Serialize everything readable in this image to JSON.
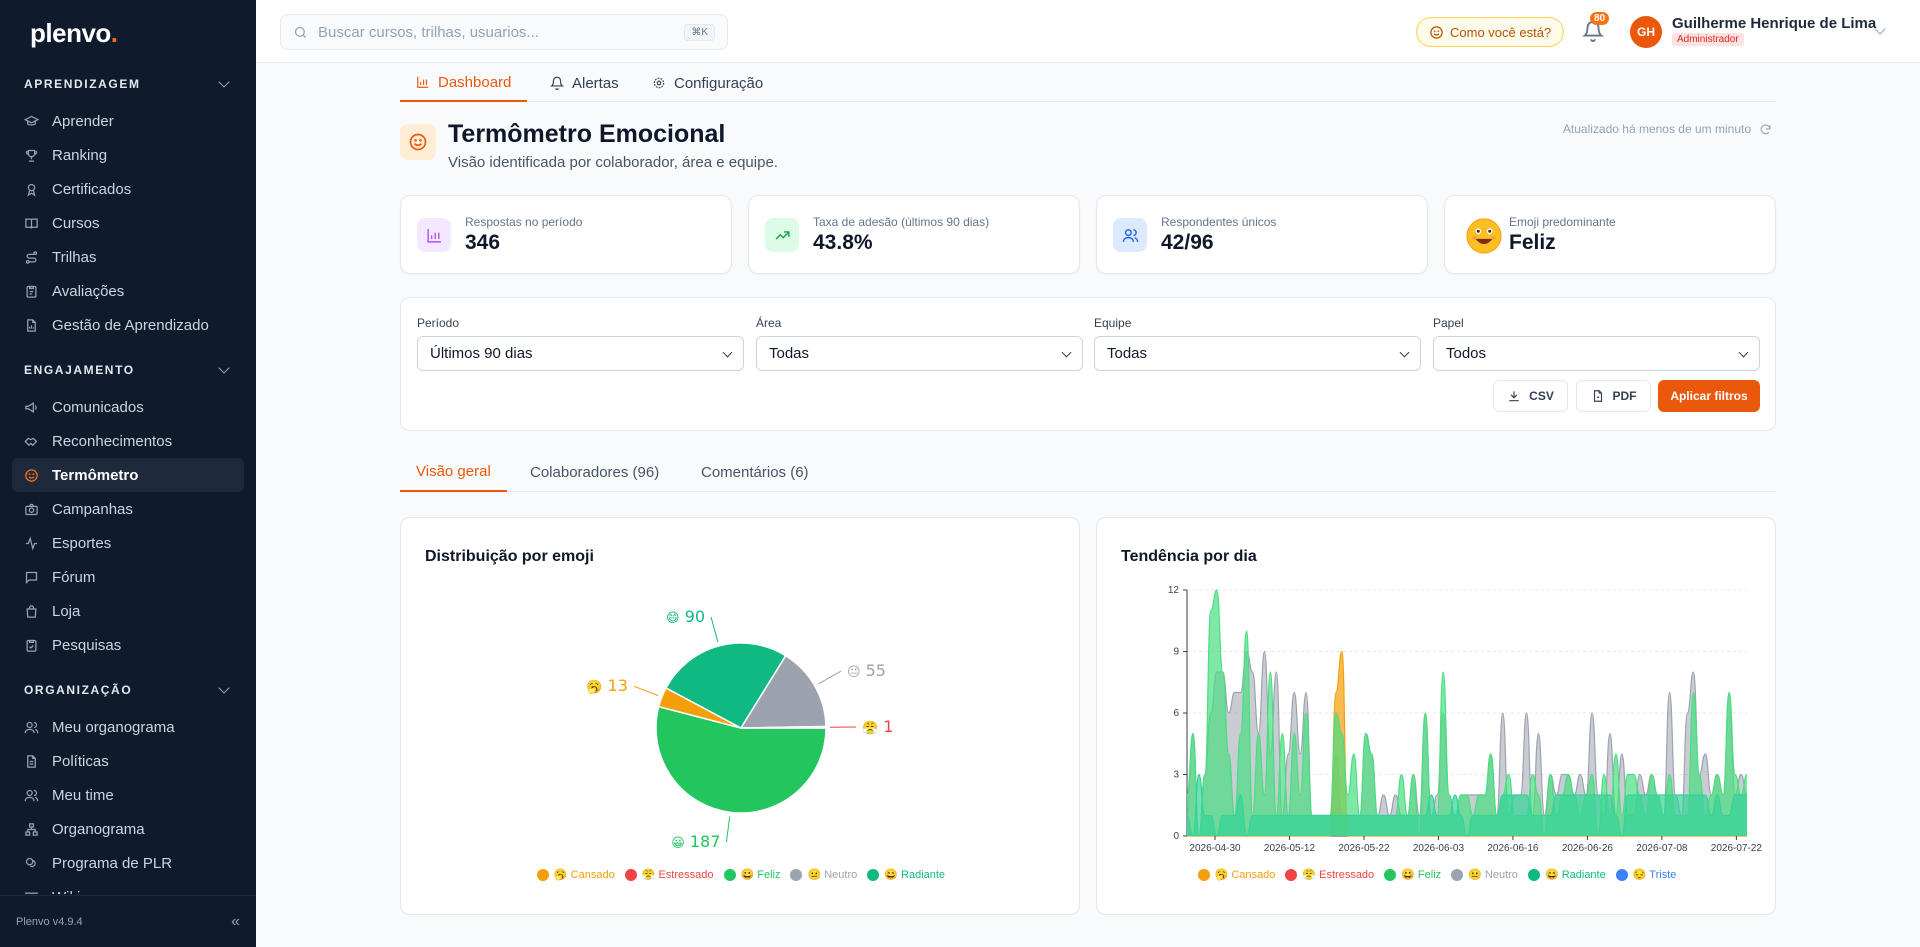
{
  "brand": {
    "name": "plenvo",
    "dot": "."
  },
  "sidebar": {
    "sections": [
      {
        "title": "APRENDIZAGEM",
        "items": [
          {
            "label": "Aprender",
            "icon": "graduation-cap-icon"
          },
          {
            "label": "Ranking",
            "icon": "trophy-icon"
          },
          {
            "label": "Certificados",
            "icon": "award-icon"
          },
          {
            "label": "Cursos",
            "icon": "book-icon"
          },
          {
            "label": "Trilhas",
            "icon": "route-icon"
          },
          {
            "label": "Avaliações",
            "icon": "clipboard-icon"
          },
          {
            "label": "Gestão de Aprendizado",
            "icon": "file-chart-icon"
          }
        ]
      },
      {
        "title": "ENGAJAMENTO",
        "items": [
          {
            "label": "Comunicados",
            "icon": "megaphone-icon"
          },
          {
            "label": "Reconhecimentos",
            "icon": "handshake-icon"
          },
          {
            "label": "Termômetro",
            "icon": "smile-icon",
            "active": true
          },
          {
            "label": "Campanhas",
            "icon": "camera-icon"
          },
          {
            "label": "Esportes",
            "icon": "activity-icon"
          },
          {
            "label": "Fórum",
            "icon": "message-icon"
          },
          {
            "label": "Loja",
            "icon": "shopping-bag-icon"
          },
          {
            "label": "Pesquisas",
            "icon": "clipboard-check-icon"
          }
        ]
      },
      {
        "title": "ORGANIZAÇÃO",
        "items": [
          {
            "label": "Meu organograma",
            "icon": "users-icon"
          },
          {
            "label": "Políticas",
            "icon": "document-icon"
          },
          {
            "label": "Meu time",
            "icon": "users-icon"
          },
          {
            "label": "Organograma",
            "icon": "network-icon"
          },
          {
            "label": "Programa de PLR",
            "icon": "coins-icon"
          },
          {
            "label": "Wiki",
            "icon": "book-open-icon"
          }
        ]
      }
    ],
    "version": "Plenvo v4.9.4"
  },
  "topbar": {
    "search_placeholder": "Buscar cursos, trilhas, usuarios...",
    "search_kbd": "⌘K",
    "mood_button": "Como você está?",
    "notifications": "80",
    "user": {
      "initials": "GH",
      "name": "Guilherme Henrique de Lima",
      "role": "Administrador"
    }
  },
  "page_tabs": [
    {
      "label": "Dashboard",
      "active": true
    },
    {
      "label": "Alertas"
    },
    {
      "label": "Configuração"
    }
  ],
  "header": {
    "title": "Termômetro Emocional",
    "subtitle": "Visão identificada por colaborador, área e equipe.",
    "updated": "Atualizado há menos de um minuto"
  },
  "kpis": [
    {
      "label": "Respostas no período",
      "value": "346",
      "icon": "bar-chart-icon",
      "color": "#a855f7",
      "bg": "#f3e8ff"
    },
    {
      "label": "Taxa de adesão (últimos 90 dias)",
      "value": "43.8%",
      "icon": "trending-up-icon",
      "color": "#16a34a",
      "bg": "#dcfce7"
    },
    {
      "label": "Respondentes únicos",
      "value": "42/96",
      "icon": "users-icon",
      "color": "#2563eb",
      "bg": "#dbeafe"
    },
    {
      "label": "Emoji predominante",
      "value": "Feliz",
      "icon": "happy-emoji-icon"
    }
  ],
  "filters": {
    "fields": [
      {
        "label": "Período",
        "value": "Últimos 90 dias"
      },
      {
        "label": "Área",
        "value": "Todas"
      },
      {
        "label": "Equipe",
        "value": "Todas"
      },
      {
        "label": "Papel",
        "value": "Todos"
      }
    ],
    "csv": "CSV",
    "pdf": "PDF",
    "apply": "Aplicar filtros"
  },
  "sub_tabs": [
    {
      "label": "Visão geral",
      "active": true
    },
    {
      "label": "Colaboradores (96)"
    },
    {
      "label": "Comentários (6)"
    }
  ],
  "chart_data": [
    {
      "type": "pie",
      "title": "Distribuição por emoji",
      "slices": [
        {
          "label": "Feliz",
          "emoji": "😀",
          "value": 187,
          "color": "#22c55e"
        },
        {
          "label": "Cansado",
          "emoji": "🥱",
          "value": 13,
          "color": "#f59e0b"
        },
        {
          "label": "Radiante",
          "emoji": "😄",
          "value": 90,
          "color": "#10b981"
        },
        {
          "label": "Neutro",
          "emoji": "😐",
          "value": 55,
          "color": "#9ca3af"
        },
        {
          "label": "Estressado",
          "emoji": "😤",
          "value": 1,
          "color": "#ef4444"
        }
      ],
      "legend": [
        {
          "label": "🥱 Cansado",
          "color": "#f59e0b"
        },
        {
          "label": "😤 Estressado",
          "color": "#ef4444"
        },
        {
          "label": "😀 Feliz",
          "color": "#22c55e"
        },
        {
          "label": "😐 Neutro",
          "color": "#9ca3af"
        },
        {
          "label": "😄 Radiante",
          "color": "#10b981"
        }
      ]
    },
    {
      "type": "area",
      "title": "Tendência por dia",
      "ylim": [
        0,
        12
      ],
      "yticks": [
        "0",
        "3",
        "6",
        "9",
        "12"
      ],
      "xticks": [
        "2026-04-30",
        "2026-05-12",
        "2026-05-22",
        "2026-06-03",
        "2026-06-16",
        "2026-06-26",
        "2026-07-08",
        "2026-07-22"
      ],
      "series": [
        {
          "name": "Neutro",
          "color": "#9ca3af",
          "values": [
            1,
            5,
            0,
            3,
            6,
            8,
            8,
            6,
            7,
            7,
            9,
            8,
            5,
            9,
            4,
            8,
            1,
            4,
            7,
            4,
            7,
            1,
            1,
            1,
            1,
            4,
            1,
            1,
            1,
            1,
            5,
            4,
            1,
            2,
            1,
            2,
            1,
            1,
            3,
            1,
            6,
            1,
            2,
            6,
            2,
            1,
            2,
            2,
            2,
            2,
            2,
            4,
            1,
            6,
            1,
            2,
            2,
            6,
            1,
            5,
            1,
            3,
            2,
            3,
            3,
            2,
            3,
            2,
            6,
            2,
            1,
            5,
            1,
            4,
            1,
            1,
            3,
            2,
            3,
            2,
            1,
            7,
            2,
            1,
            6,
            8,
            3,
            4,
            2,
            3,
            2,
            7,
            2,
            3,
            2
          ]
        },
        {
          "name": "Cansado",
          "color": "#f59e0b",
          "values": [
            0,
            0,
            0,
            0,
            0,
            0,
            0,
            0,
            0,
            0,
            0,
            0,
            0,
            0,
            0,
            0,
            0,
            0,
            0,
            0,
            0,
            0,
            0,
            0,
            0,
            7,
            9,
            0,
            0,
            0,
            0,
            0,
            0,
            0,
            0,
            0,
            0,
            0,
            0,
            0,
            0,
            0,
            0,
            0,
            0,
            0,
            0,
            0,
            0,
            0,
            0,
            0,
            0,
            0,
            0,
            0,
            0,
            0,
            0,
            0,
            0,
            0,
            0,
            0,
            0,
            0,
            0,
            0,
            0,
            0,
            0,
            0,
            0,
            0,
            0,
            0,
            0,
            0,
            0,
            0,
            0,
            0,
            0,
            0,
            0,
            0,
            0,
            0,
            0,
            0,
            0,
            0,
            0,
            0,
            0
          ]
        },
        {
          "name": "Feliz",
          "color": "#4ade80",
          "values": [
            2,
            5,
            0,
            3,
            11,
            12,
            8,
            4,
            1,
            5,
            10,
            1,
            5,
            2,
            8,
            1,
            5,
            1,
            5,
            2,
            6,
            1,
            1,
            1,
            1,
            6,
            5,
            2,
            4,
            1,
            5,
            4,
            1,
            1,
            1,
            1,
            3,
            1,
            3,
            0,
            6,
            1,
            1,
            8,
            2,
            1,
            2,
            2,
            1,
            2,
            2,
            4,
            1,
            2,
            3,
            1,
            1,
            1,
            3,
            2,
            0,
            3,
            1,
            2,
            3,
            2,
            1,
            2,
            3,
            0,
            3,
            1,
            4,
            1,
            3,
            3,
            2,
            1,
            3,
            2,
            1,
            3,
            1,
            1,
            1,
            7,
            3,
            1,
            2,
            3,
            2,
            7,
            3,
            2,
            3
          ]
        },
        {
          "name": "Radiante",
          "color": "#34d399",
          "values": [
            1,
            0,
            3,
            1,
            1,
            0,
            1,
            1,
            1,
            2,
            0,
            1,
            1,
            1,
            1,
            1,
            1,
            1,
            1,
            1,
            1,
            1,
            1,
            1,
            1,
            1,
            1,
            1,
            1,
            1,
            1,
            1,
            1,
            1,
            1,
            1,
            1,
            1,
            1,
            1,
            1,
            2,
            1,
            1,
            1,
            2,
            1,
            0,
            1,
            1,
            1,
            1,
            1,
            2,
            2,
            2,
            2,
            2,
            1,
            1,
            1,
            1,
            2,
            2,
            2,
            2,
            2,
            2,
            2,
            2,
            2,
            2,
            1,
            0,
            2,
            2,
            2,
            2,
            2,
            2,
            2,
            2,
            2,
            2,
            2,
            2,
            2,
            2,
            1,
            2,
            1,
            1,
            2,
            2,
            2
          ]
        }
      ],
      "legend": [
        {
          "label": "🥱 Cansado",
          "color": "#f59e0b"
        },
        {
          "label": "😤 Estressado",
          "color": "#ef4444"
        },
        {
          "label": "😀 Feliz",
          "color": "#22c55e"
        },
        {
          "label": "😐 Neutro",
          "color": "#9ca3af"
        },
        {
          "label": "😄 Radiante",
          "color": "#10b981"
        },
        {
          "label": "😔 Triste",
          "color": "#3b82f6"
        }
      ]
    }
  ]
}
